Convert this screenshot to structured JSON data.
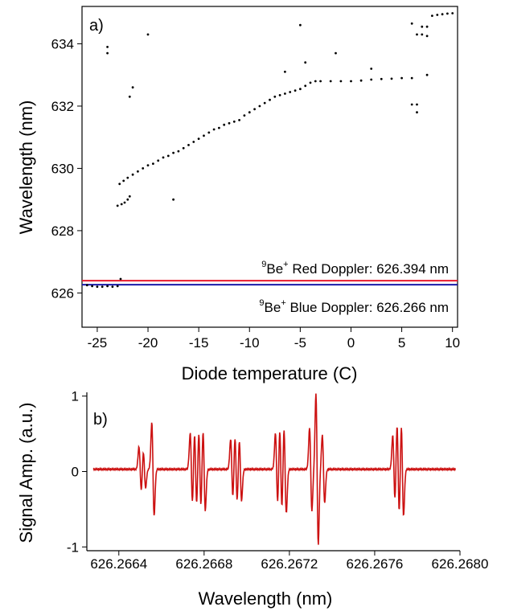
{
  "chart_data": [
    {
      "panel_label": "a)",
      "type": "scatter",
      "xlabel": "Diode temperature (C)",
      "ylabel": "Wavelength (nm)",
      "xlim": [
        -26.5,
        10.5
      ],
      "ylim": [
        624.9,
        635.2
      ],
      "x_ticks": [
        -25,
        -20,
        -15,
        -10,
        -5,
        0,
        5,
        10
      ],
      "y_ticks": [
        626,
        628,
        630,
        632,
        634
      ],
      "grid": false,
      "series": [
        {
          "style": "black dots",
          "points": [
            [
              -23.0,
              628.8
            ],
            [
              -22.6,
              628.85
            ],
            [
              -22.3,
              628.9
            ],
            [
              -22.0,
              629.0
            ],
            [
              -21.8,
              629.1
            ],
            [
              -22.8,
              629.5
            ],
            [
              -22.4,
              629.6
            ],
            [
              -22.0,
              629.7
            ],
            [
              -21.5,
              629.8
            ],
            [
              -21.0,
              629.9
            ],
            [
              -20.5,
              630.0
            ],
            [
              -20.0,
              630.1
            ],
            [
              -19.5,
              630.15
            ],
            [
              -19.0,
              630.25
            ],
            [
              -18.5,
              630.35
            ],
            [
              -18.0,
              630.4
            ],
            [
              -17.5,
              630.5
            ],
            [
              -17.0,
              630.55
            ],
            [
              -16.5,
              630.65
            ],
            [
              -16.0,
              630.75
            ],
            [
              -15.5,
              630.85
            ],
            [
              -15.0,
              630.95
            ],
            [
              -14.5,
              631.05
            ],
            [
              -14.0,
              631.15
            ],
            [
              -13.5,
              631.25
            ],
            [
              -13.0,
              631.3
            ],
            [
              -12.5,
              631.4
            ],
            [
              -12.0,
              631.45
            ],
            [
              -11.5,
              631.5
            ],
            [
              -11.0,
              631.55
            ],
            [
              -10.5,
              631.7
            ],
            [
              -10.0,
              631.8
            ],
            [
              -9.5,
              631.9
            ],
            [
              -9.0,
              632.0
            ],
            [
              -8.5,
              632.1
            ],
            [
              -8.0,
              632.2
            ],
            [
              -7.5,
              632.3
            ],
            [
              -7.0,
              632.35
            ],
            [
              -6.5,
              632.4
            ],
            [
              -6.0,
              632.45
            ],
            [
              -5.5,
              632.5
            ],
            [
              -5.0,
              632.55
            ],
            [
              -4.5,
              632.65
            ],
            [
              -4.0,
              632.75
            ],
            [
              -3.5,
              632.8
            ],
            [
              -3.0,
              632.8
            ],
            [
              -2.0,
              632.8
            ],
            [
              -1.0,
              632.8
            ],
            [
              0.0,
              632.8
            ],
            [
              1.0,
              632.82
            ],
            [
              2.0,
              632.85
            ],
            [
              3.0,
              632.87
            ],
            [
              4.0,
              632.88
            ],
            [
              5.0,
              632.9
            ],
            [
              6.0,
              632.9
            ],
            [
              -24.0,
              633.9
            ],
            [
              -24.0,
              633.7
            ],
            [
              -20.0,
              634.3
            ],
            [
              -21.5,
              632.6
            ],
            [
              -21.8,
              632.3
            ],
            [
              -5.0,
              634.6
            ],
            [
              -1.5,
              633.7
            ],
            [
              -4.5,
              633.4
            ],
            [
              -6.5,
              633.1
            ],
            [
              2.0,
              633.2
            ],
            [
              6.0,
              632.05
            ],
            [
              6.5,
              632.05
            ],
            [
              6.5,
              631.8
            ],
            [
              7.5,
              633.0
            ],
            [
              -17.5,
              629.0
            ],
            [
              6.0,
              634.65
            ],
            [
              6.5,
              634.3
            ],
            [
              7.0,
              634.3
            ],
            [
              7.5,
              634.25
            ],
            [
              7.0,
              634.55
            ],
            [
              7.5,
              634.55
            ],
            [
              8.0,
              634.9
            ],
            [
              8.5,
              634.93
            ],
            [
              9.0,
              634.95
            ],
            [
              9.5,
              634.97
            ],
            [
              10.0,
              634.98
            ],
            [
              -26.0,
              626.25
            ],
            [
              -25.5,
              626.22
            ],
            [
              -25.0,
              626.2
            ],
            [
              -24.5,
              626.2
            ],
            [
              -24.0,
              626.22
            ],
            [
              -23.5,
              626.2
            ],
            [
              -23.0,
              626.22
            ],
            [
              -22.7,
              626.45
            ]
          ]
        }
      ],
      "reference_lines": [
        {
          "label_pre": "9",
          "label_main": "Be",
          "label_sup": "+",
          "label_post": " Red Doppler: 626.394 nm",
          "value": 626.394,
          "color": "#e8192c"
        },
        {
          "label_pre": "9",
          "label_main": "Be",
          "label_sup": "+",
          "label_post": " Blue Doppler: 626.266 nm",
          "value": 626.266,
          "color": "#1a1aa8"
        }
      ]
    },
    {
      "panel_label": "b)",
      "type": "line",
      "xlabel": "Wavelength (nm)",
      "ylabel": "Signal Amp. (a.u.)",
      "xlim": [
        626.26625,
        626.268
      ],
      "ylim": [
        -1.05,
        1.05
      ],
      "x_ticks": [
        "626.2664",
        "626.2668",
        "626.2672",
        "626.2676",
        "626.2680"
      ],
      "x_tick_values": [
        626.2664,
        626.2668,
        626.2672,
        626.2676,
        626.268
      ],
      "y_ticks": [
        "-1",
        "0",
        "1"
      ],
      "y_tick_values": [
        -1,
        0,
        1
      ],
      "grid": false,
      "series": [
        {
          "color": "#cc1111",
          "baseline": 0.03,
          "features": [
            {
              "x": 626.2665,
              "amp": 0.3
            },
            {
              "x": 626.26652,
              "amp": 0.25
            },
            {
              "x": 626.26656,
              "amp": 0.62
            },
            {
              "x": 626.26674,
              "amp": 0.48
            },
            {
              "x": 626.26676,
              "amp": 0.5
            },
            {
              "x": 626.26678,
              "amp": 0.52
            },
            {
              "x": 626.2668,
              "amp": 0.55
            },
            {
              "x": 626.26693,
              "amp": 0.4
            },
            {
              "x": 626.26695,
              "amp": 0.45
            },
            {
              "x": 626.26697,
              "amp": 0.42
            },
            {
              "x": 626.26714,
              "amp": 0.48
            },
            {
              "x": 626.26716,
              "amp": 0.55
            },
            {
              "x": 626.26718,
              "amp": 0.58
            },
            {
              "x": 626.2673,
              "amp": 0.55
            },
            {
              "x": 626.26733,
              "amp": 1.0
            },
            {
              "x": 626.26736,
              "amp": 0.45
            },
            {
              "x": 626.26769,
              "amp": 0.45
            },
            {
              "x": 626.26771,
              "amp": 0.62
            },
            {
              "x": 626.26773,
              "amp": 0.62
            }
          ]
        }
      ]
    }
  ]
}
